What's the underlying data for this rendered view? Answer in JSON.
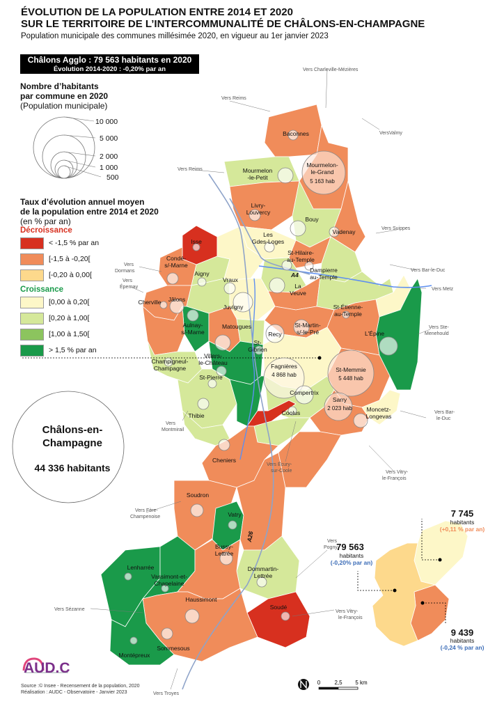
{
  "title_line1": "ÉVOLUTION DE LA POPULATION ENTRE 2014 ET 2020",
  "title_line2": "SUR LE TERRITOIRE DE L’INTERCOMMUNALITÉ DE CHÂLONS-EN-CHAMPAGNE",
  "subtitle": "Population municipale des communes millésimée 2020, en vigueur au 1er janvier 2023",
  "agglo_box": {
    "line1": "Châlons Agglo : 79 563 habitants en 2020",
    "line2": "Évolution 2014-2020 : -0,20% par an"
  },
  "size_legend": {
    "title_line1": "Nombre d’habitants",
    "title_line2": "par commune en 2020",
    "subtitle": "(Population municipale)",
    "values": [
      "10 000",
      "5 000",
      "2 000",
      "1 000",
      "500"
    ]
  },
  "rate_legend": {
    "title_line1": "Taux d’évolution annuel moyen",
    "title_line2": "de la population entre 2014 et 2020",
    "subtitle": "(en % par an)",
    "decrease_label": "Décroissance",
    "growth_label": "Croissance",
    "classes": [
      {
        "label": "< -1,5 % par an",
        "color": "#d7301f"
      },
      {
        "label": "[-1,5 à -0,20[",
        "color": "#f08c5a"
      },
      {
        "label": "[-0,20 à 0,00[",
        "color": "#fdd98c"
      },
      {
        "label": "[0,00 à 0,20[",
        "color": "#fdf7c8"
      },
      {
        "label": "[0,20 à 1,00[",
        "color": "#d5e89a"
      },
      {
        "label": "[1,00 à 1,50[",
        "color": "#8cc45e"
      },
      {
        "label": "> 1,5 % par an",
        "color": "#1a9a4a"
      }
    ]
  },
  "chalons": {
    "name_line1": "Châlons-en-",
    "name_line2": "Champagne",
    "pop": "44 336 habitants"
  },
  "communes": [
    {
      "name": "Baconnes"
    },
    {
      "name": "Mourmelon-le-Petit",
      "l1": "Mourmelon",
      "l2": "-le-Petit"
    },
    {
      "name": "Mourmelon-le-Grand",
      "l1": "Mourmelon-",
      "l2": "le-Grand",
      "pop": "5 163 hab"
    },
    {
      "name": "Livry-Louvercy",
      "l1": "Livry-",
      "l2": "Louvercy"
    },
    {
      "name": "Bouy"
    },
    {
      "name": "Les Grandes-Loges",
      "l1": "Les",
      "l2": "Gdes-Loges"
    },
    {
      "name": "Vadenay"
    },
    {
      "name": "Isse"
    },
    {
      "name": "Condé-s/-Marne",
      "l1": "Condé-",
      "l2": "s/-Marne"
    },
    {
      "name": "Aigny"
    },
    {
      "name": "Vraux"
    },
    {
      "name": "St-Hilaire-au-Temple",
      "l1": "St-Hilaire-",
      "l2": "au-Temple"
    },
    {
      "name": "Dampierre-au-Temple",
      "l1": "Dampierre",
      "l2": "au-Temple"
    },
    {
      "name": "La Veuve",
      "l1": "La",
      "l2": "Veuve"
    },
    {
      "name": "Jâlons"
    },
    {
      "name": "Cherville"
    },
    {
      "name": "Juvigny"
    },
    {
      "name": "St-Étienne-au-Temple",
      "l1": "St-Étienne-",
      "l2": "au-Temple"
    },
    {
      "name": "Aulnay-s/-Marne",
      "l1": "Aulnay-",
      "l2": "s/-Marne"
    },
    {
      "name": "Matougues"
    },
    {
      "name": "Recy"
    },
    {
      "name": "St-Martin-s/-le-Pré",
      "l1": "St-Martin-",
      "l2": "s/-le-Pré"
    },
    {
      "name": "L'Épine"
    },
    {
      "name": "St-Gibrien",
      "l1": "St-",
      "l2": "Gibrien"
    },
    {
      "name": "Villers-le-Château",
      "l1": "Villers-",
      "l2": "le-Château"
    },
    {
      "name": "Champigneul-Champagne",
      "l1": "Champigneul-",
      "l2": "Champagne"
    },
    {
      "name": "Fagnières",
      "pop": "4 868 hab"
    },
    {
      "name": "St-Memmie",
      "pop": "5 448 hab"
    },
    {
      "name": "St-Pierre"
    },
    {
      "name": "Compertrix"
    },
    {
      "name": "Sarry",
      "pop": "2 023 hab"
    },
    {
      "name": "Moncetz-Longevas",
      "l1": "Moncetz-",
      "l2": "Longevas"
    },
    {
      "name": "Thibie"
    },
    {
      "name": "Coolus"
    },
    {
      "name": "Cheniers"
    },
    {
      "name": "Soudron"
    },
    {
      "name": "Vatry"
    },
    {
      "name": "Bussy-Lettrée",
      "l1": "Bussy-",
      "l2": "Lettrée"
    },
    {
      "name": "Dommartin-Lettrée",
      "l1": "Dommartin-",
      "l2": "Lettrée"
    },
    {
      "name": "Lenharrée"
    },
    {
      "name": "Vassimont-et-Chapelaine",
      "l1": "Vassimont-et-",
      "l2": "Chapelaine"
    },
    {
      "name": "Haussimont"
    },
    {
      "name": "Soudé"
    },
    {
      "name": "Sommesous"
    },
    {
      "name": "Montépreux"
    }
  ],
  "directions": [
    {
      "l1": "Vers Charleville-Mézières"
    },
    {
      "l1": "Vers Reims"
    },
    {
      "l1": "VersValmy"
    },
    {
      "l1": "Vers Reims"
    },
    {
      "l1": "Vers Suippes"
    },
    {
      "l1": "Vers Bar-le-Duc"
    },
    {
      "l1": "Vers",
      "l2": "Dormans"
    },
    {
      "l1": "Vers",
      "l2": "Épernay"
    },
    {
      "l1": "Vers Metz"
    },
    {
      "l1": "Vers Ste-",
      "l2": "Menehould"
    },
    {
      "l1": "Vers",
      "l2": "Montmirail"
    },
    {
      "l1": "Vers Bar-",
      "l2": "le-Duc"
    },
    {
      "l1": "Vers Écury-",
      "l2": "sur-Coole"
    },
    {
      "l1": "Vers Vitry-",
      "l2": "le-François"
    },
    {
      "l1": "Vers Fère-",
      "l2": "Champenoise"
    },
    {
      "l1": "Vers",
      "l2": "Pogny"
    },
    {
      "l1": "Vers Sézanne"
    },
    {
      "l1": "Vers Vitry-",
      "l2": "le-François"
    },
    {
      "l1": "Vers Troyes"
    }
  ],
  "roads": [
    "A4",
    "A26"
  ],
  "inset": {
    "north": {
      "pop": "7 745",
      "word": "habitants",
      "rate": "(+0,11 % par an)"
    },
    "center": {
      "pop": "79 563",
      "word": "habitants",
      "rate": "(-0,20% par an)"
    },
    "south": {
      "pop": "9 439",
      "word": "habitants",
      "rate": "(-0,24 % par an)"
    }
  },
  "scale": {
    "ticks": [
      "0",
      "2,5",
      "5 km"
    ]
  },
  "logo": "AUD.C",
  "source_line1": "Source :© Insee - Recensement de la population, 2020",
  "source_line2": "Réalisation : AUDC - Observatoire - Janvier 2023",
  "colors": {
    "rate_pos_text": "#f08c5a",
    "rate_neg_text": "#3b6cb7",
    "road": "#8ea3c9",
    "river": "#5e8ff0"
  }
}
